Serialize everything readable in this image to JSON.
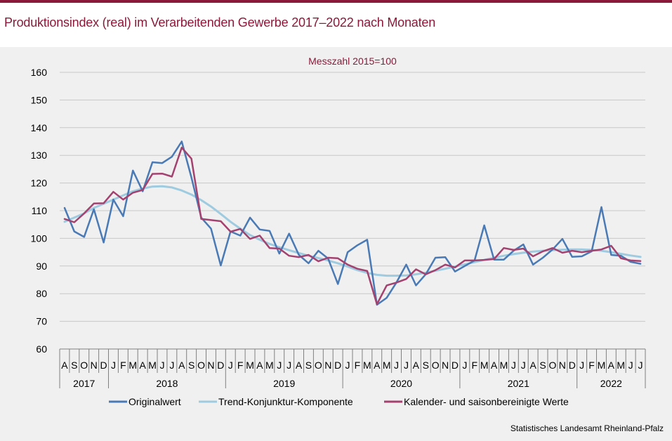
{
  "title": "Produktionsindex (real) im Verarbeitenden Gewerbe 2017–2022 nach Monaten",
  "source": "Statistisches Landesamt Rheinland-Pfalz",
  "chart_data": {
    "type": "line",
    "subtitle": "Messzahl 2015=100",
    "ylim": [
      60,
      160
    ],
    "yticks": [
      60,
      70,
      80,
      90,
      100,
      110,
      120,
      130,
      140,
      150,
      160
    ],
    "grid": "horizontal",
    "legend_placement": "bottom",
    "months": [
      "A",
      "S",
      "O",
      "N",
      "D",
      "J",
      "F",
      "M",
      "A",
      "M",
      "J",
      "J",
      "A",
      "S",
      "O",
      "N",
      "D",
      "J",
      "F",
      "M",
      "A",
      "M",
      "J",
      "J",
      "A",
      "S",
      "O",
      "N",
      "D",
      "J",
      "F",
      "M",
      "A",
      "M",
      "J",
      "J",
      "A",
      "S",
      "O",
      "N",
      "D",
      "J",
      "F",
      "M",
      "A",
      "M",
      "J",
      "J",
      "A",
      "S",
      "O",
      "N",
      "D",
      "J",
      "F",
      "M",
      "A",
      "M",
      "J",
      "J"
    ],
    "years": [
      {
        "label": "2017",
        "start": 0,
        "count": 5
      },
      {
        "label": "2018",
        "start": 5,
        "count": 12
      },
      {
        "label": "2019",
        "start": 17,
        "count": 12
      },
      {
        "label": "2020",
        "start": 29,
        "count": 12
      },
      {
        "label": "2021",
        "start": 41,
        "count": 12
      },
      {
        "label": "2022",
        "start": 53,
        "count": 7
      }
    ],
    "series": [
      {
        "name": "Originalwert",
        "color": "#4a7ab5",
        "values": [
          111,
          102.5,
          100.5,
          110.5,
          98.5,
          114,
          108,
          124.5,
          117,
          127.5,
          127.2,
          129.5,
          135,
          122,
          107.5,
          103.5,
          90.2,
          102.5,
          101,
          107.5,
          103.2,
          102.7,
          94.5,
          101.7,
          94,
          91,
          95.5,
          92.7,
          83.5,
          95,
          97.5,
          99.5,
          76,
          78.5,
          84,
          90.5,
          83,
          87,
          93,
          93.2,
          88,
          90,
          92,
          104.7,
          92.3,
          92.3,
          95.5,
          97.8,
          90.5,
          93,
          96,
          99.8,
          93.3,
          93.5,
          95.3,
          111.3,
          94,
          93.7,
          91.5,
          90.8
        ]
      },
      {
        "name": "Trend-Konjunktur-Komponente",
        "color": "#9fcbe0",
        "values": [
          106,
          107.5,
          109,
          111,
          112.5,
          114,
          115.5,
          117,
          118,
          118.7,
          118.8,
          118.4,
          117.3,
          115.8,
          113.8,
          111.5,
          108.8,
          106,
          103.5,
          101.2,
          99.5,
          98,
          96.8,
          95.7,
          94.7,
          93.7,
          92.9,
          92,
          91,
          89.8,
          88.5,
          87.5,
          86.8,
          86.5,
          86.5,
          86.6,
          87,
          87.6,
          88.3,
          89,
          89.8,
          90.6,
          91.4,
          92.2,
          93,
          93.7,
          94.3,
          94.8,
          95.2,
          95.5,
          95.7,
          95.9,
          96,
          96,
          95.8,
          95.5,
          95,
          94.4,
          93.8,
          93.3
        ]
      },
      {
        "name": "Kalender- und saisonbereinigte Werte",
        "color": "#a3426f",
        "values": [
          107,
          105.8,
          109,
          112.6,
          112.7,
          116.8,
          114,
          116.5,
          117.5,
          123.3,
          123.4,
          122.3,
          132.8,
          128.8,
          107,
          106.6,
          106.2,
          102.4,
          103.4,
          99.8,
          101,
          96.5,
          96.3,
          93.7,
          93.2,
          94,
          91.7,
          93,
          92.8,
          90.5,
          89,
          88.2,
          76.2,
          83,
          84,
          85.3,
          88.8,
          87,
          88.5,
          90.5,
          89.5,
          92,
          92,
          92.2,
          92.5,
          96.5,
          95.8,
          96.3,
          93.5,
          95.3,
          96.5,
          94.8,
          95.5,
          95,
          95.5,
          96,
          97.3,
          92.8,
          92,
          91.8
        ]
      }
    ]
  }
}
